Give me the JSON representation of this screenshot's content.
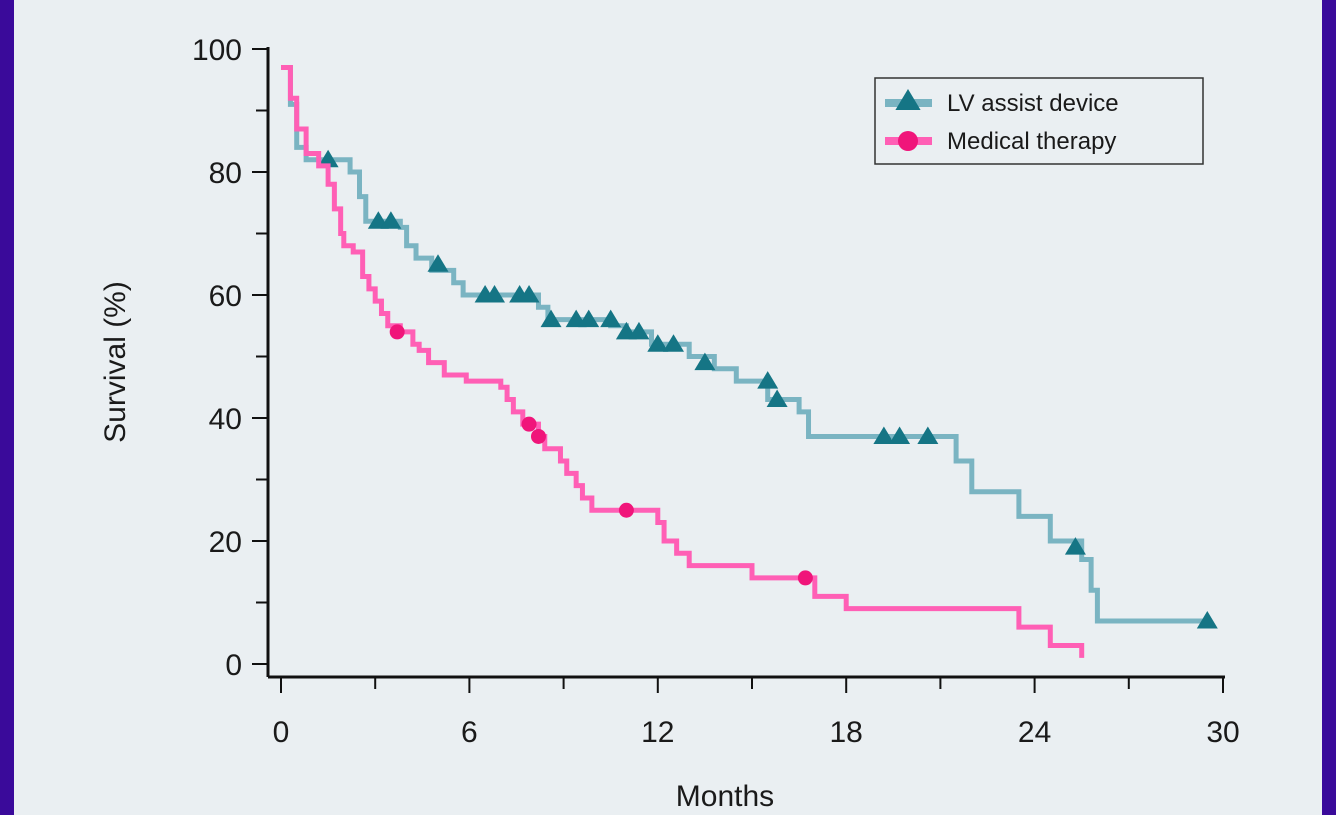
{
  "chart_data": {
    "type": "line",
    "xlabel": "Months",
    "ylabel": "Survival (%)",
    "xlim": [
      0,
      30
    ],
    "ylim": [
      0,
      100
    ],
    "x_ticks": [
      0,
      6,
      12,
      18,
      24,
      30
    ],
    "y_ticks": [
      0,
      20,
      40,
      60,
      80,
      100
    ],
    "legend_position": "top-right",
    "series": [
      {
        "name": "LV assist device",
        "color": "#7ab4c2",
        "marker": "triangle",
        "marker_color": "#157585",
        "steps": [
          [
            0,
            97
          ],
          [
            0.3,
            95
          ],
          [
            0.3,
            91
          ],
          [
            0.5,
            88
          ],
          [
            0.5,
            84
          ],
          [
            0.8,
            84
          ],
          [
            0.8,
            82
          ],
          [
            2.2,
            82
          ],
          [
            2.2,
            80
          ],
          [
            2.5,
            80
          ],
          [
            2.5,
            76
          ],
          [
            2.7,
            76
          ],
          [
            2.7,
            72
          ],
          [
            3.8,
            72
          ],
          [
            3.8,
            71
          ],
          [
            4,
            71
          ],
          [
            4,
            68
          ],
          [
            4.3,
            68
          ],
          [
            4.3,
            66
          ],
          [
            4.8,
            66
          ],
          [
            4.8,
            64
          ],
          [
            5.5,
            64
          ],
          [
            5.5,
            62
          ],
          [
            5.8,
            62
          ],
          [
            5.8,
            60
          ],
          [
            8.2,
            60
          ],
          [
            8.2,
            58
          ],
          [
            8.5,
            58
          ],
          [
            8.5,
            56
          ],
          [
            10.5,
            56
          ],
          [
            10.5,
            55
          ],
          [
            11,
            55
          ],
          [
            11,
            54
          ],
          [
            11.8,
            54
          ],
          [
            11.8,
            52
          ],
          [
            13,
            52
          ],
          [
            13,
            50
          ],
          [
            13.8,
            50
          ],
          [
            13.8,
            48
          ],
          [
            14.5,
            48
          ],
          [
            14.5,
            46
          ],
          [
            15.5,
            46
          ],
          [
            15.5,
            43
          ],
          [
            16.5,
            43
          ],
          [
            16.5,
            41
          ],
          [
            16.8,
            41
          ],
          [
            16.8,
            37
          ],
          [
            21.5,
            37
          ],
          [
            21.5,
            33
          ],
          [
            22,
            33
          ],
          [
            22,
            28
          ],
          [
            23.5,
            28
          ],
          [
            23.5,
            24
          ],
          [
            24.5,
            24
          ],
          [
            24.5,
            20
          ],
          [
            25.5,
            20
          ],
          [
            25.5,
            17
          ],
          [
            25.8,
            17
          ],
          [
            25.8,
            12
          ],
          [
            26,
            12
          ],
          [
            26,
            7
          ],
          [
            29.5,
            7
          ]
        ],
        "censored": [
          [
            1.5,
            82
          ],
          [
            3.1,
            72
          ],
          [
            3.5,
            72
          ],
          [
            5,
            65
          ],
          [
            6.5,
            60
          ],
          [
            6.8,
            60
          ],
          [
            7.6,
            60
          ],
          [
            7.9,
            60
          ],
          [
            8.6,
            56
          ],
          [
            9.4,
            56
          ],
          [
            9.8,
            56
          ],
          [
            10.5,
            56
          ],
          [
            11,
            54
          ],
          [
            11.4,
            54
          ],
          [
            12,
            52
          ],
          [
            12.5,
            52
          ],
          [
            13.5,
            49
          ],
          [
            15.5,
            46
          ],
          [
            15.8,
            43
          ],
          [
            19.2,
            37
          ],
          [
            19.7,
            37
          ],
          [
            20.6,
            37
          ],
          [
            25.3,
            19
          ],
          [
            29.5,
            7
          ]
        ]
      },
      {
        "name": "Medical therapy",
        "color": "#ff5fb5",
        "marker": "circle",
        "marker_color": "#f0157a",
        "steps": [
          [
            0,
            97
          ],
          [
            0.3,
            92
          ],
          [
            0.5,
            87
          ],
          [
            0.8,
            83
          ],
          [
            1.2,
            81
          ],
          [
            1.5,
            78
          ],
          [
            1.7,
            74
          ],
          [
            1.9,
            70
          ],
          [
            2,
            68
          ],
          [
            2.3,
            67
          ],
          [
            2.6,
            63
          ],
          [
            2.8,
            61
          ],
          [
            3,
            59
          ],
          [
            3.2,
            57
          ],
          [
            3.4,
            55
          ],
          [
            3.8,
            54
          ],
          [
            4.2,
            52
          ],
          [
            4.4,
            51
          ],
          [
            4.7,
            49
          ],
          [
            5.2,
            47
          ],
          [
            5.9,
            46
          ],
          [
            7,
            45
          ],
          [
            7.2,
            43
          ],
          [
            7.4,
            41
          ],
          [
            7.7,
            39
          ],
          [
            8.2,
            37
          ],
          [
            8.4,
            35
          ],
          [
            8.9,
            33
          ],
          [
            9.1,
            31
          ],
          [
            9.4,
            29
          ],
          [
            9.6,
            27
          ],
          [
            9.9,
            25
          ],
          [
            12,
            23
          ],
          [
            12.2,
            20
          ],
          [
            12.6,
            18
          ],
          [
            13,
            16
          ],
          [
            15,
            14
          ],
          [
            17,
            11
          ],
          [
            18,
            9
          ],
          [
            23.5,
            6
          ],
          [
            24.5,
            3
          ],
          [
            25.5,
            1
          ]
        ],
        "censored": [
          [
            3.7,
            54
          ],
          [
            7.9,
            39
          ],
          [
            8.2,
            37
          ],
          [
            11,
            25
          ],
          [
            16.7,
            14
          ]
        ]
      }
    ]
  }
}
